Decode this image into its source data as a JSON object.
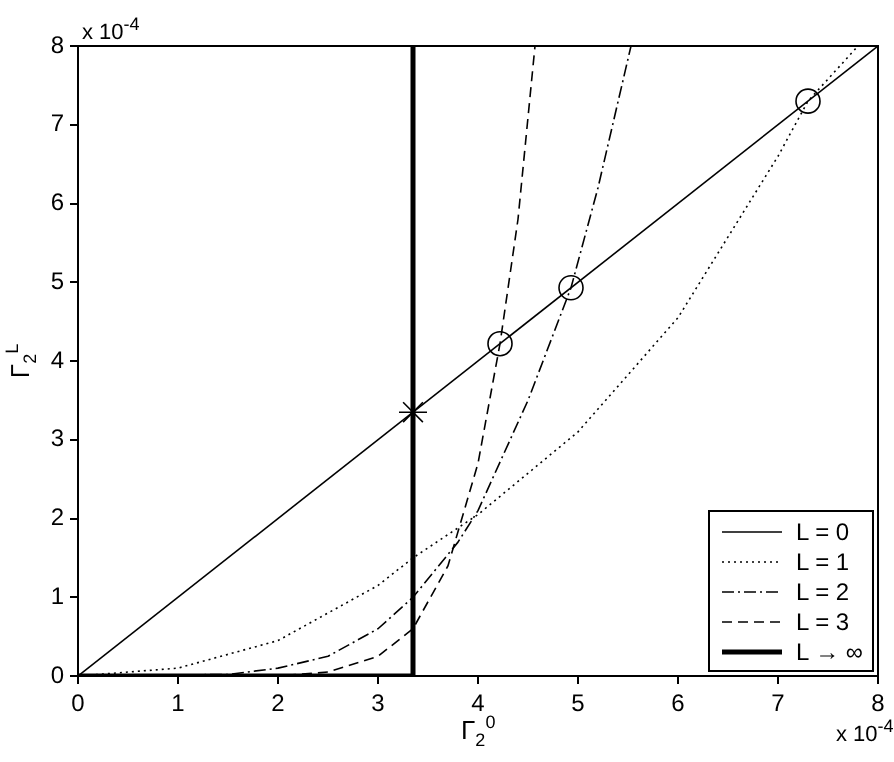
{
  "chart_data": {
    "type": "line",
    "xlabel": "Γ$_{2}$$^{0}$",
    "ylabel": "Γ$_{2}$$^{L}$",
    "annotations": [
      "x 10$^{-4}$",
      "x 10$^{-4}$"
    ],
    "xlim": [
      0,
      8
    ],
    "ylim": [
      0,
      8
    ],
    "xticks": [
      0,
      1,
      2,
      3,
      4,
      5,
      6,
      7,
      8
    ],
    "yticks": [
      0,
      1,
      2,
      3,
      4,
      5,
      6,
      7,
      8
    ],
    "grid": false,
    "legend": "bottom right",
    "series": [
      {
        "name": "L = 0",
        "color": "#000000",
        "line_style": "solid",
        "x": [
          0,
          8
        ],
        "values": [
          0,
          8
        ]
      },
      {
        "name": "L = 1",
        "color": "#000000",
        "line_style": "dotted",
        "x": [
          0,
          1,
          2,
          3,
          3.35,
          4,
          5,
          6,
          7,
          7.3,
          7.8
        ],
        "values": [
          0,
          0.1,
          0.45,
          1.15,
          1.5,
          2.05,
          3.1,
          4.55,
          6.6,
          7.3,
          8
        ]
      },
      {
        "name": "L = 2",
        "color": "#000000",
        "line_style": "dashdot",
        "x": [
          0,
          1.5,
          2,
          2.5,
          3,
          3.35,
          3.8,
          4,
          4.5,
          4.93,
          5.2,
          5.53
        ],
        "values": [
          0,
          0.02,
          0.1,
          0.25,
          0.6,
          1.0,
          1.7,
          2.1,
          3.5,
          4.93,
          6.2,
          8
        ]
      },
      {
        "name": "L = 3",
        "color": "#000000",
        "line_style": "dashed",
        "x": [
          0,
          2,
          2.5,
          3,
          3.35,
          3.7,
          4,
          4.22,
          4.4,
          4.57
        ],
        "values": [
          0,
          0,
          0.05,
          0.25,
          0.6,
          1.4,
          2.7,
          4.22,
          5.8,
          8
        ]
      },
      {
        "name": "L → ∞",
        "color": "#000000",
        "line_style": "solid",
        "x": [
          0,
          3.35,
          3.35
        ],
        "values": [
          0,
          0,
          8
        ]
      },
      {
        "type": "scatter",
        "marker": "circle",
        "color": "#000000",
        "x": [
          4.22,
          4.93,
          7.3
        ],
        "values": [
          4.22,
          4.93,
          7.3
        ]
      },
      {
        "type": "scatter",
        "marker": "cross",
        "color": "#000000",
        "x": [
          3.35
        ],
        "values": [
          3.35
        ]
      }
    ]
  }
}
